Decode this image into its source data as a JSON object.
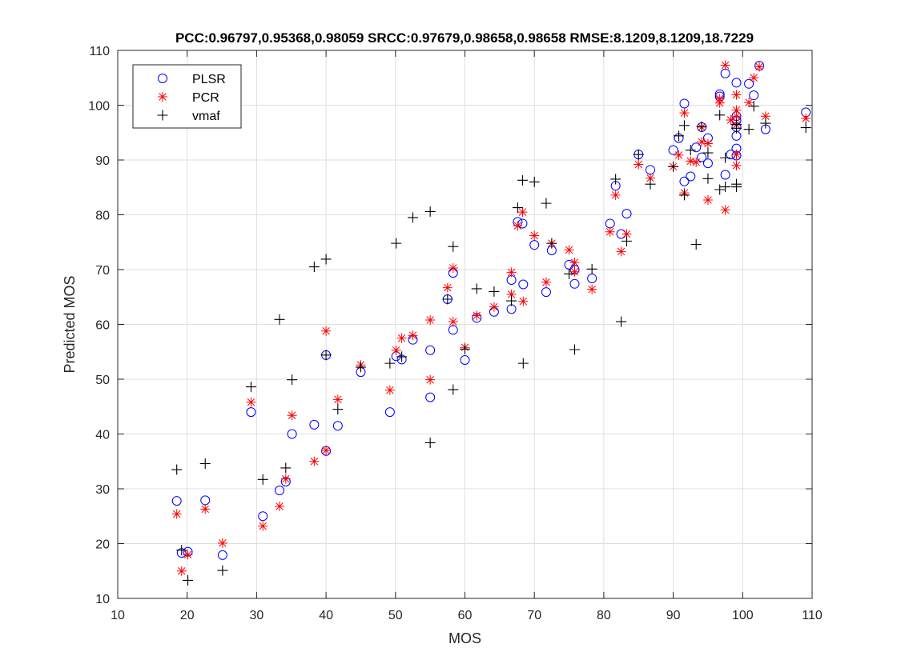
{
  "chart_data": {
    "type": "scatter",
    "title": "PCC:0.96797,0.95368,0.98059    SRCC:0.97679,0.98658,0.98658    RMSE:8.1209,8.1209,18.7229",
    "xlabel": "MOS",
    "ylabel": "Predicted MOS",
    "xlim": [
      10,
      110
    ],
    "ylim": [
      10,
      110
    ],
    "xticks": [
      10,
      20,
      30,
      40,
      50,
      60,
      70,
      80,
      90,
      100,
      110
    ],
    "yticks": [
      10,
      20,
      30,
      40,
      50,
      60,
      70,
      80,
      90,
      100,
      110
    ],
    "grid": true,
    "legend_position": "top-left",
    "series": [
      {
        "name": "PLSR",
        "marker": "circle",
        "color": "#0000ff",
        "points": [
          [
            18.5,
            27.8
          ],
          [
            19.2,
            18.3
          ],
          [
            20.1,
            18.5
          ],
          [
            22.6,
            27.9
          ],
          [
            25.1,
            17.9
          ],
          [
            29.2,
            44.0
          ],
          [
            30.9,
            25.0
          ],
          [
            33.3,
            29.7
          ],
          [
            34.2,
            31.3
          ],
          [
            35.1,
            40.0
          ],
          [
            38.3,
            41.7
          ],
          [
            40.0,
            54.4
          ],
          [
            40.0,
            36.9
          ],
          [
            41.7,
            41.5
          ],
          [
            45.0,
            51.3
          ],
          [
            49.2,
            44.0
          ],
          [
            50.1,
            54.2
          ],
          [
            50.9,
            53.6
          ],
          [
            52.5,
            57.2
          ],
          [
            55.0,
            55.3
          ],
          [
            55.0,
            46.7
          ],
          [
            57.5,
            64.6
          ],
          [
            58.3,
            69.4
          ],
          [
            58.3,
            59.0
          ],
          [
            60.0,
            53.5
          ],
          [
            61.7,
            61.2
          ],
          [
            64.2,
            62.3
          ],
          [
            66.7,
            68.1
          ],
          [
            66.7,
            62.8
          ],
          [
            67.6,
            78.7
          ],
          [
            68.3,
            78.4
          ],
          [
            68.4,
            67.3
          ],
          [
            70.0,
            74.5
          ],
          [
            71.7,
            65.9
          ],
          [
            72.5,
            73.5
          ],
          [
            75.0,
            70.9
          ],
          [
            75.8,
            70.0
          ],
          [
            75.8,
            67.4
          ],
          [
            78.3,
            68.4
          ],
          [
            80.9,
            78.4
          ],
          [
            81.7,
            85.3
          ],
          [
            82.5,
            76.5
          ],
          [
            83.3,
            80.2
          ],
          [
            85.0,
            91.0
          ],
          [
            86.7,
            88.2
          ],
          [
            90.0,
            91.8
          ],
          [
            90.8,
            94.0
          ],
          [
            91.6,
            100.3
          ],
          [
            91.6,
            86.1
          ],
          [
            92.5,
            87.0
          ],
          [
            93.3,
            92.3
          ],
          [
            94.1,
            96.0
          ],
          [
            94.1,
            90.5
          ],
          [
            95.0,
            94.0
          ],
          [
            95.0,
            89.4
          ],
          [
            96.7,
            102.0
          ],
          [
            96.7,
            101.6
          ],
          [
            97.5,
            105.8
          ],
          [
            97.5,
            87.3
          ],
          [
            98.3,
            91.0
          ],
          [
            99.1,
            104.1
          ],
          [
            99.1,
            98.0
          ],
          [
            99.1,
            97.2
          ],
          [
            99.1,
            96.0
          ],
          [
            99.1,
            94.4
          ],
          [
            99.1,
            92.1
          ],
          [
            99.1,
            90.8
          ],
          [
            100.9,
            103.9
          ],
          [
            101.6,
            101.8
          ],
          [
            102.4,
            107.2
          ],
          [
            103.3,
            95.6
          ],
          [
            109.1,
            98.7
          ]
        ]
      },
      {
        "name": "PCR",
        "marker": "asterisk",
        "color": "#ff0000",
        "points": [
          [
            18.5,
            25.4
          ],
          [
            19.2,
            15.0
          ],
          [
            20.1,
            18.0
          ],
          [
            22.6,
            26.3
          ],
          [
            25.1,
            20.1
          ],
          [
            29.2,
            45.8
          ],
          [
            30.9,
            23.2
          ],
          [
            33.3,
            26.8
          ],
          [
            34.2,
            31.8
          ],
          [
            35.1,
            43.4
          ],
          [
            38.3,
            35.0
          ],
          [
            40.0,
            58.8
          ],
          [
            40.0,
            37.0
          ],
          [
            41.7,
            46.3
          ],
          [
            45.0,
            52.6
          ],
          [
            49.2,
            48.0
          ],
          [
            50.1,
            55.3
          ],
          [
            50.9,
            57.5
          ],
          [
            52.5,
            58.0
          ],
          [
            55.0,
            60.8
          ],
          [
            55.0,
            49.9
          ],
          [
            57.5,
            66.7
          ],
          [
            58.3,
            70.3
          ],
          [
            58.3,
            60.5
          ],
          [
            60.0,
            55.8
          ],
          [
            61.7,
            61.6
          ],
          [
            64.2,
            63.2
          ],
          [
            66.7,
            69.5
          ],
          [
            66.7,
            65.5
          ],
          [
            67.6,
            78.0
          ],
          [
            68.3,
            80.5
          ],
          [
            68.4,
            64.2
          ],
          [
            70.0,
            76.2
          ],
          [
            71.7,
            67.7
          ],
          [
            72.5,
            74.8
          ],
          [
            75.0,
            73.6
          ],
          [
            75.8,
            71.3
          ],
          [
            75.8,
            69.6
          ],
          [
            78.3,
            66.4
          ],
          [
            80.9,
            76.9
          ],
          [
            81.7,
            83.6
          ],
          [
            82.5,
            73.3
          ],
          [
            83.3,
            76.5
          ],
          [
            85.0,
            89.2
          ],
          [
            86.7,
            86.7
          ],
          [
            90.0,
            88.8
          ],
          [
            90.8,
            90.9
          ],
          [
            91.6,
            98.6
          ],
          [
            91.6,
            84.0
          ],
          [
            92.5,
            89.8
          ],
          [
            93.3,
            89.6
          ],
          [
            94.1,
            96.0
          ],
          [
            94.1,
            93.3
          ],
          [
            95.0,
            93.0
          ],
          [
            95.0,
            82.7
          ],
          [
            96.7,
            100.4
          ],
          [
            96.7,
            101.2
          ],
          [
            97.5,
            107.3
          ],
          [
            97.5,
            80.9
          ],
          [
            98.3,
            97.3
          ],
          [
            99.1,
            101.9
          ],
          [
            99.1,
            99.1
          ],
          [
            99.1,
            98.0
          ],
          [
            99.1,
            96.4
          ],
          [
            99.1,
            91.0
          ],
          [
            99.1,
            89.0
          ],
          [
            100.9,
            100.5
          ],
          [
            101.6,
            105.0
          ],
          [
            102.4,
            107.0
          ],
          [
            103.3,
            98.0
          ],
          [
            109.1,
            97.6
          ]
        ]
      },
      {
        "name": "vmaf",
        "marker": "plus",
        "color": "#000000",
        "points": [
          [
            18.5,
            33.5
          ],
          [
            19.2,
            18.8
          ],
          [
            20.1,
            13.3
          ],
          [
            22.6,
            34.6
          ],
          [
            25.1,
            15.1
          ],
          [
            29.2,
            48.6
          ],
          [
            30.9,
            31.7
          ],
          [
            33.3,
            60.9
          ],
          [
            34.2,
            33.8
          ],
          [
            35.1,
            49.9
          ],
          [
            38.3,
            70.5
          ],
          [
            40.0,
            71.9
          ],
          [
            40.0,
            54.4
          ],
          [
            41.7,
            44.5
          ],
          [
            45.0,
            52.2
          ],
          [
            49.2,
            52.9
          ],
          [
            50.1,
            74.8
          ],
          [
            50.9,
            54.1
          ],
          [
            52.5,
            79.5
          ],
          [
            55.0,
            80.6
          ],
          [
            55.0,
            38.4
          ],
          [
            57.5,
            64.6
          ],
          [
            58.3,
            74.2
          ],
          [
            58.3,
            48.1
          ],
          [
            60.0,
            55.5
          ],
          [
            61.7,
            66.5
          ],
          [
            64.2,
            66.0
          ],
          [
            66.7,
            64.3
          ],
          [
            67.6,
            81.3
          ],
          [
            68.3,
            86.3
          ],
          [
            68.4,
            52.9
          ],
          [
            70.0,
            86.0
          ],
          [
            71.7,
            82.1
          ],
          [
            72.5,
            74.8
          ],
          [
            75.0,
            69.2
          ],
          [
            75.8,
            55.4
          ],
          [
            78.3,
            70.1
          ],
          [
            81.7,
            86.5
          ],
          [
            82.5,
            60.5
          ],
          [
            83.3,
            75.2
          ],
          [
            85.0,
            91.0
          ],
          [
            86.7,
            85.6
          ],
          [
            90.0,
            88.8
          ],
          [
            90.8,
            94.4
          ],
          [
            91.6,
            96.3
          ],
          [
            91.6,
            83.6
          ],
          [
            92.5,
            91.8
          ],
          [
            93.3,
            74.6
          ],
          [
            94.1,
            96.1
          ],
          [
            95.0,
            91.3
          ],
          [
            95.0,
            86.6
          ],
          [
            96.7,
            98.2
          ],
          [
            96.7,
            84.6
          ],
          [
            97.5,
            90.4
          ],
          [
            97.5,
            85.1
          ],
          [
            99.1,
            96.5
          ],
          [
            99.1,
            95.8
          ],
          [
            99.1,
            85.6
          ],
          [
            99.1,
            85.1
          ],
          [
            100.9,
            95.6
          ],
          [
            101.6,
            99.8
          ],
          [
            103.3,
            96.7
          ],
          [
            109.1,
            95.9
          ]
        ]
      }
    ]
  }
}
